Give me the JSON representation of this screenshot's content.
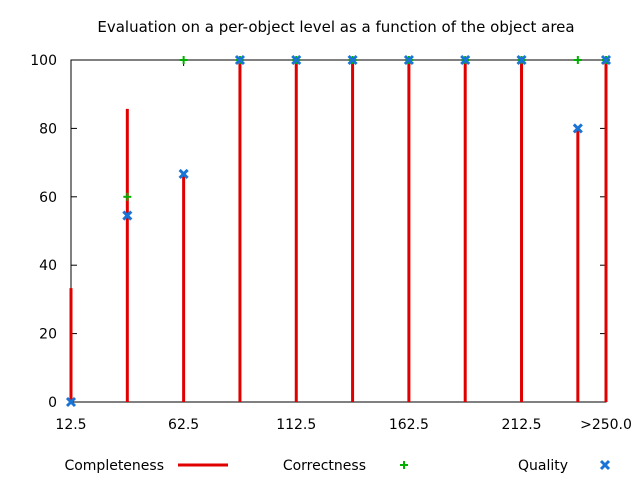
{
  "chart_data": {
    "type": "bar",
    "title": "Evaluation on a per-object level as a function of the object area",
    "xlabel": "",
    "ylabel": "",
    "x": [
      12.5,
      37.5,
      62.5,
      87.5,
      112.5,
      137.5,
      162.5,
      187.5,
      212.5,
      237.5,
      250
    ],
    "x_tick_labels": [
      "12.5",
      "62.5",
      "112.5",
      "162.5",
      "212.5",
      ">250.0"
    ],
    "x_tick_values": [
      12.5,
      62.5,
      112.5,
      162.5,
      212.5,
      250
    ],
    "xlim": [
      12.5,
      250
    ],
    "y_ticks": [
      0,
      20,
      40,
      60,
      80,
      100
    ],
    "ylim": [
      0,
      100
    ],
    "grid": false,
    "legend_position": "bottom",
    "series": [
      {
        "name": "Completeness",
        "style": "impulses",
        "color": "#e00000",
        "values": [
          33.3,
          85.7,
          66.7,
          100,
          100,
          100,
          100,
          100,
          100,
          80,
          100
        ]
      },
      {
        "name": "Correctness",
        "style": "plus",
        "color": "#00b000",
        "values": [
          null,
          60,
          100,
          100,
          100,
          100,
          100,
          100,
          100,
          100,
          100
        ]
      },
      {
        "name": "Quality",
        "style": "cross",
        "color": "#1a74d6",
        "values": [
          0,
          54.5,
          66.7,
          100,
          100,
          100,
          100,
          100,
          100,
          80,
          100
        ]
      }
    ]
  }
}
